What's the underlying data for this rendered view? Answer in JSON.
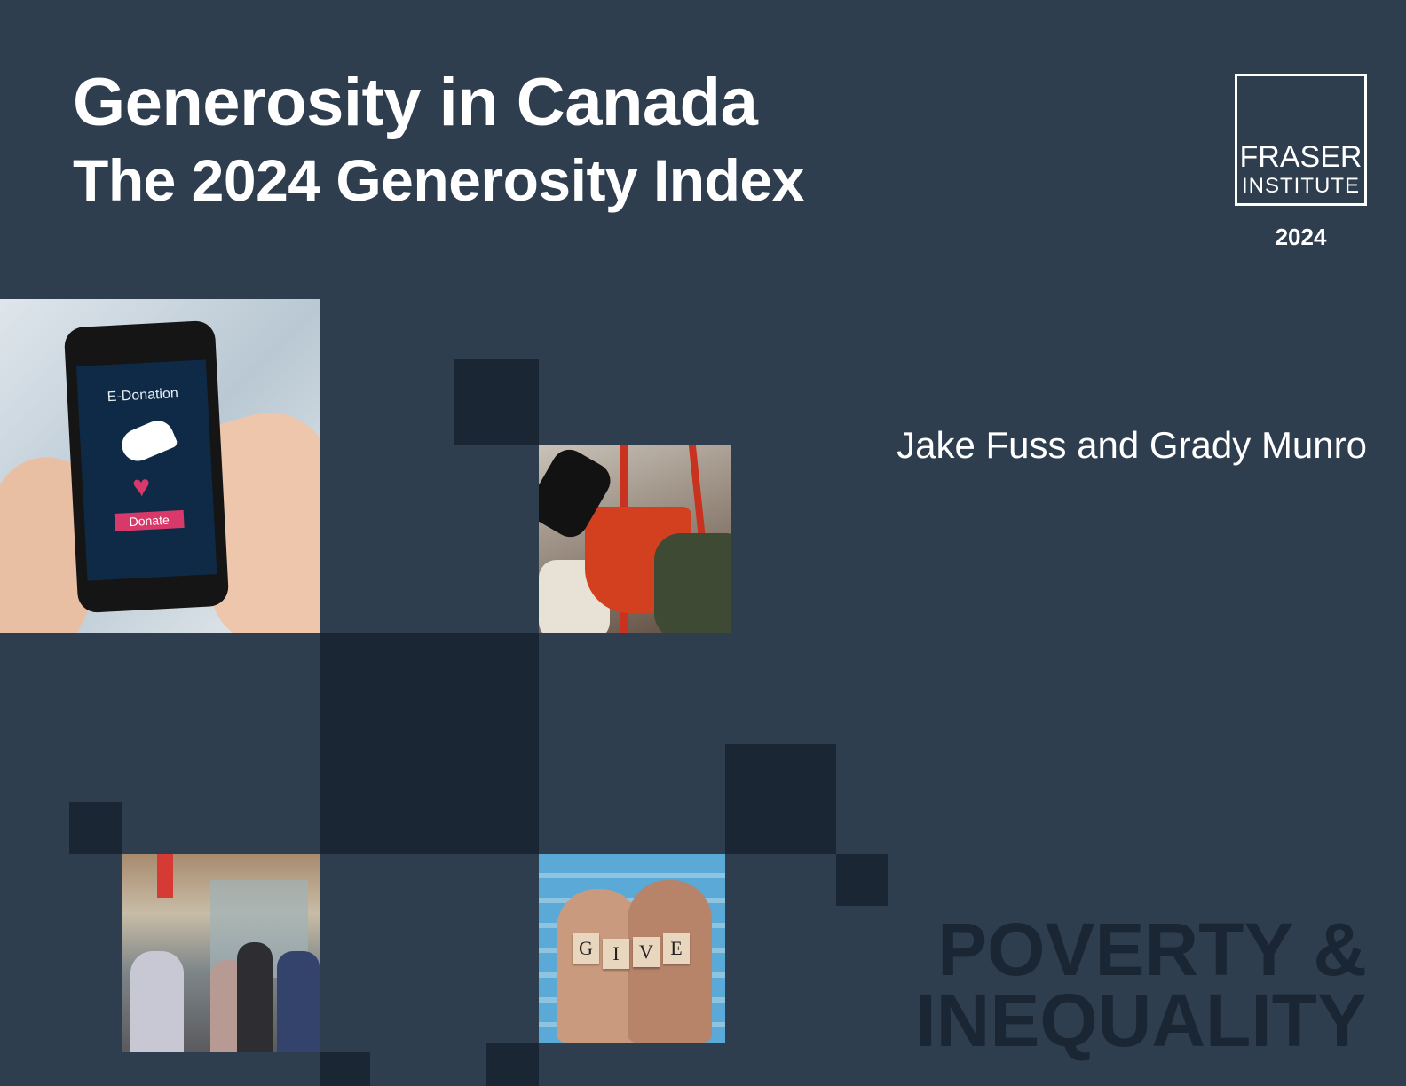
{
  "cover": {
    "title": "Generosity in Canada",
    "subtitle": "The 2024 Generosity Index",
    "authors": "Jake Fuss and Grady Munro",
    "series_line1": "POVERTY &",
    "series_line2": "INEQUALITY",
    "year": "2024"
  },
  "logo": {
    "line1": "FRASER",
    "line2": "INSTITUTE"
  },
  "photos": {
    "phone": {
      "screen_title": "E-Donation",
      "button": "Donate"
    },
    "give_blocks": [
      "G",
      "I",
      "V",
      "E"
    ]
  },
  "colors": {
    "background": "#2f3e4f",
    "dark_square": "#1b2634",
    "text": "#ffffff"
  }
}
